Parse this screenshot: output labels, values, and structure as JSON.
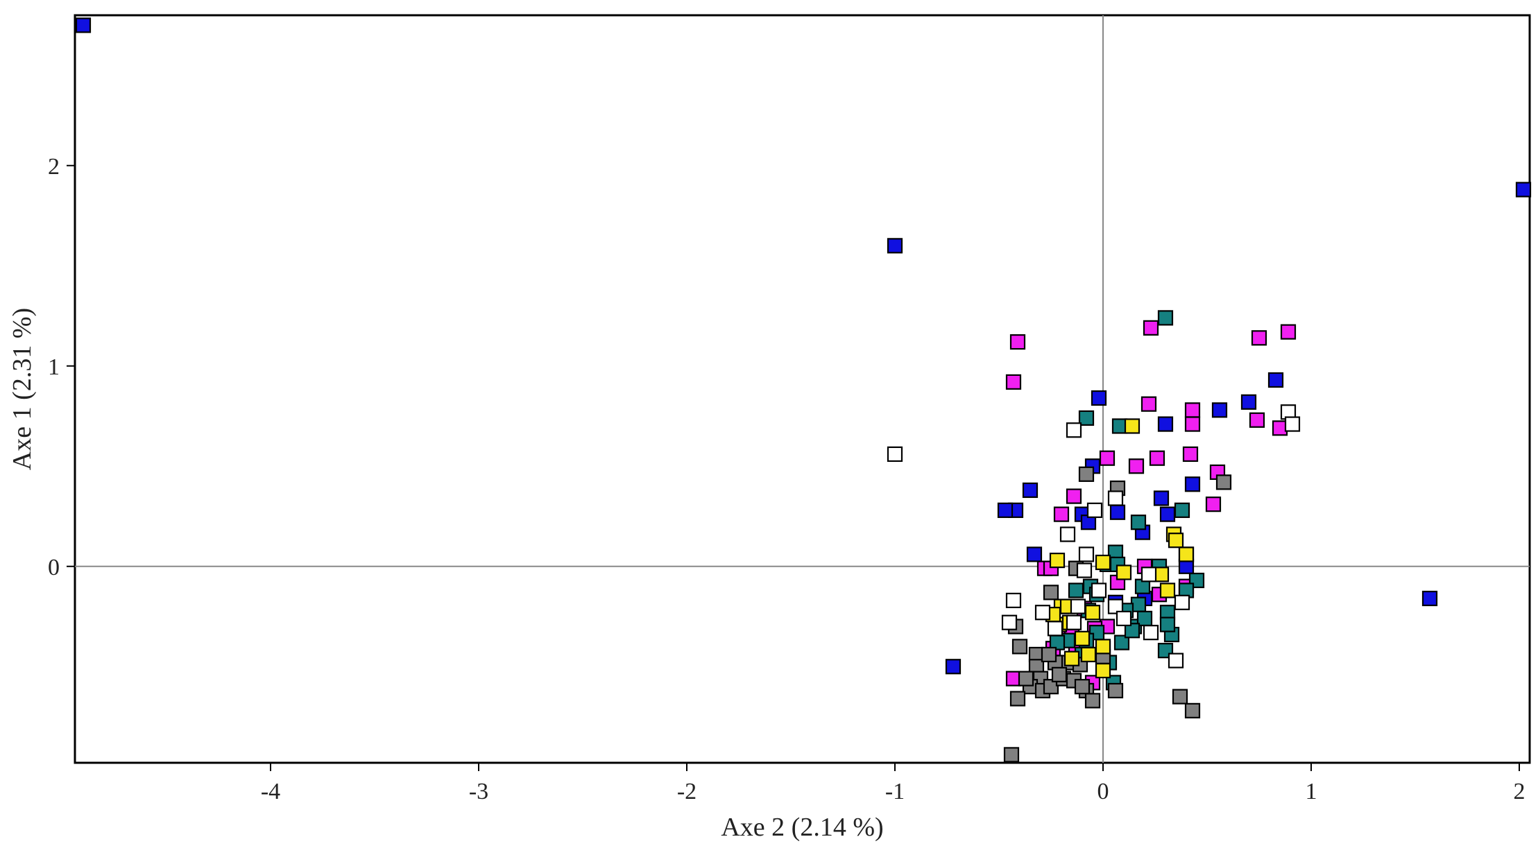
{
  "chart_data": {
    "type": "scatter",
    "xlabel": "Axe 2 (2.14 %)",
    "ylabel": "Axe 1 (2.31 %)",
    "xlim": [
      -4.94,
      2.05
    ],
    "ylim": [
      -0.98,
      2.75
    ],
    "x_ticks": [
      -4,
      -3,
      -2,
      -1,
      0,
      1,
      2
    ],
    "y_ticks": [
      0,
      1,
      2
    ],
    "grid": false,
    "reference_lines": {
      "x": 0,
      "y": 0
    },
    "marker": "square",
    "colors": {
      "blue": "#1010e0",
      "magenta": "#f020f0",
      "teal": "#158080",
      "gray": "#808080",
      "yellow": "#f5e51a",
      "white": "#ffffff"
    },
    "series": [
      {
        "color": "#1010e0",
        "points": [
          [
            -4.9,
            2.7
          ],
          [
            2.02,
            1.88
          ],
          [
            -1.0,
            1.6
          ],
          [
            1.57,
            -0.16
          ],
          [
            -0.72,
            -0.5
          ],
          [
            -0.02,
            0.84
          ],
          [
            0.83,
            0.93
          ],
          [
            0.7,
            0.82
          ],
          [
            0.56,
            0.78
          ],
          [
            0.3,
            0.71
          ],
          [
            -0.35,
            0.38
          ],
          [
            -0.42,
            0.28
          ],
          [
            -0.47,
            0.28
          ],
          [
            0.43,
            0.41
          ],
          [
            0.28,
            0.34
          ],
          [
            -0.1,
            0.26
          ],
          [
            -0.07,
            0.22
          ],
          [
            0.07,
            0.27
          ],
          [
            0.19,
            0.17
          ],
          [
            0.31,
            0.26
          ],
          [
            -0.33,
            0.06
          ],
          [
            -0.05,
            0.5
          ],
          [
            0.4,
            0.0
          ],
          [
            0.2,
            -0.16
          ],
          [
            0.06,
            -0.18
          ]
        ]
      },
      {
        "color": "#f020f0",
        "points": [
          [
            -0.41,
            1.12
          ],
          [
            -0.43,
            0.92
          ],
          [
            0.23,
            1.19
          ],
          [
            0.75,
            1.14
          ],
          [
            0.89,
            1.17
          ],
          [
            0.74,
            0.73
          ],
          [
            0.85,
            0.69
          ],
          [
            0.22,
            0.81
          ],
          [
            0.43,
            0.78
          ],
          [
            0.43,
            0.71
          ],
          [
            0.26,
            0.54
          ],
          [
            0.16,
            0.5
          ],
          [
            0.42,
            0.56
          ],
          [
            0.02,
            0.54
          ],
          [
            0.55,
            0.47
          ],
          [
            0.53,
            0.31
          ],
          [
            -0.14,
            0.35
          ],
          [
            -0.2,
            0.26
          ],
          [
            -0.28,
            -0.01
          ],
          [
            -0.25,
            -0.01
          ],
          [
            0.27,
            -0.14
          ],
          [
            0.4,
            -0.1
          ],
          [
            0.07,
            -0.08
          ],
          [
            0.2,
            0.0
          ],
          [
            -0.09,
            -0.21
          ],
          [
            -0.2,
            -0.32
          ],
          [
            -0.13,
            -0.4
          ],
          [
            -0.24,
            -0.41
          ],
          [
            -0.15,
            -0.35
          ],
          [
            0.02,
            -0.3
          ],
          [
            0.0,
            -0.41
          ],
          [
            -0.05,
            -0.58
          ],
          [
            -0.43,
            -0.56
          ],
          [
            -0.04,
            -0.31
          ]
        ]
      },
      {
        "color": "#158080",
        "points": [
          [
            0.3,
            1.24
          ],
          [
            -0.08,
            0.74
          ],
          [
            0.08,
            0.7
          ],
          [
            0.17,
            0.22
          ],
          [
            0.38,
            0.28
          ],
          [
            0.4,
            0.06
          ],
          [
            0.45,
            -0.07
          ],
          [
            0.27,
            0.0
          ],
          [
            0.06,
            0.07
          ],
          [
            0.02,
            0.01
          ],
          [
            0.07,
            0.01
          ],
          [
            -0.13,
            -0.12
          ],
          [
            -0.06,
            -0.1
          ],
          [
            0.19,
            -0.1
          ],
          [
            0.17,
            -0.19
          ],
          [
            0.11,
            -0.22
          ],
          [
            0.31,
            -0.23
          ],
          [
            -0.07,
            -0.22
          ],
          [
            0.15,
            -0.3
          ],
          [
            0.2,
            -0.26
          ],
          [
            -0.17,
            -0.37
          ],
          [
            -0.03,
            -0.33
          ],
          [
            0.09,
            -0.38
          ],
          [
            0.3,
            -0.42
          ],
          [
            0.33,
            -0.34
          ],
          [
            0.03,
            -0.48
          ],
          [
            -0.1,
            -0.44
          ],
          [
            -0.22,
            -0.38
          ],
          [
            0.05,
            -0.58
          ],
          [
            -0.08,
            -0.37
          ],
          [
            0.14,
            -0.32
          ],
          [
            -0.03,
            -0.14
          ],
          [
            0.4,
            -0.12
          ],
          [
            0.31,
            -0.29
          ]
        ]
      },
      {
        "color": "#808080",
        "points": [
          [
            -0.08,
            0.46
          ],
          [
            0.07,
            0.39
          ],
          [
            0.58,
            0.42
          ],
          [
            -0.13,
            -0.01
          ],
          [
            -0.25,
            -0.13
          ],
          [
            -0.42,
            -0.3
          ],
          [
            -0.4,
            -0.4
          ],
          [
            -0.32,
            -0.44
          ],
          [
            -0.32,
            -0.5
          ],
          [
            -0.3,
            -0.56
          ],
          [
            -0.35,
            -0.6
          ],
          [
            -0.41,
            -0.66
          ],
          [
            -0.29,
            -0.62
          ],
          [
            -0.25,
            -0.6
          ],
          [
            -0.19,
            -0.56
          ],
          [
            -0.14,
            -0.57
          ],
          [
            -0.08,
            -0.62
          ],
          [
            -0.05,
            -0.67
          ],
          [
            -0.1,
            -0.6
          ],
          [
            -0.17,
            -0.48
          ],
          [
            -0.23,
            -0.48
          ],
          [
            0.0,
            -0.45
          ],
          [
            0.06,
            -0.62
          ],
          [
            0.37,
            -0.65
          ],
          [
            0.43,
            -0.72
          ],
          [
            -0.44,
            -0.94
          ],
          [
            -0.26,
            -0.44
          ],
          [
            -0.11,
            -0.49
          ],
          [
            -0.21,
            -0.54
          ],
          [
            -0.37,
            -0.56
          ]
        ]
      },
      {
        "color": "#f5e51a",
        "points": [
          [
            0.14,
            0.7
          ],
          [
            0.34,
            0.16
          ],
          [
            0.35,
            0.13
          ],
          [
            0.4,
            0.06
          ],
          [
            -0.22,
            0.03
          ],
          [
            0.0,
            0.02
          ],
          [
            0.28,
            -0.04
          ],
          [
            0.31,
            -0.12
          ],
          [
            -0.2,
            -0.2
          ],
          [
            -0.17,
            -0.2
          ],
          [
            -0.21,
            -0.29
          ],
          [
            -0.16,
            -0.28
          ],
          [
            -0.05,
            -0.23
          ],
          [
            -0.1,
            -0.36
          ],
          [
            -0.07,
            -0.44
          ],
          [
            0.0,
            -0.4
          ],
          [
            -0.15,
            -0.46
          ],
          [
            0.0,
            -0.52
          ],
          [
            -0.24,
            -0.24
          ],
          [
            0.1,
            -0.03
          ]
        ]
      },
      {
        "color": "#ffffff",
        "points": [
          [
            -1.0,
            0.56
          ],
          [
            -0.14,
            0.68
          ],
          [
            0.89,
            0.77
          ],
          [
            0.91,
            0.71
          ],
          [
            -0.17,
            0.16
          ],
          [
            -0.08,
            0.06
          ],
          [
            -0.04,
            0.28
          ],
          [
            0.06,
            0.34
          ],
          [
            -0.43,
            -0.17
          ],
          [
            -0.45,
            -0.28
          ],
          [
            -0.29,
            -0.23
          ],
          [
            -0.12,
            -0.2
          ],
          [
            0.06,
            -0.2
          ],
          [
            0.1,
            -0.26
          ],
          [
            0.35,
            -0.47
          ],
          [
            0.38,
            -0.18
          ],
          [
            -0.23,
            -0.31
          ],
          [
            -0.09,
            -0.02
          ],
          [
            0.22,
            -0.04
          ],
          [
            -0.14,
            -0.28
          ],
          [
            0.23,
            -0.33
          ],
          [
            -0.02,
            -0.12
          ]
        ]
      }
    ]
  }
}
